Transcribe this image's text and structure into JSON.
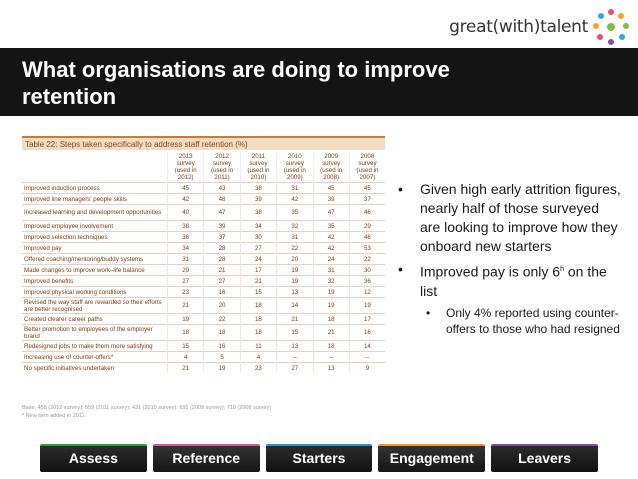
{
  "brand": {
    "name": "great(with)talent"
  },
  "slide": {
    "title": "What organisations are doing to improve retention"
  },
  "table": {
    "caption": "Table 22: Steps taken specifically to address staff retention (%)",
    "headers": [
      [
        "2013",
        "survey",
        "(used in",
        "2012)"
      ],
      [
        "2012",
        "survey",
        "(used in",
        "2011)"
      ],
      [
        "2011",
        "survey",
        "(used in",
        "2010)"
      ],
      [
        "2010",
        "survey",
        "(used in",
        "2009)"
      ],
      [
        "2009",
        "survey",
        "(used in",
        "2008)"
      ],
      [
        "2008",
        "survey",
        "(used in",
        "2007)"
      ]
    ],
    "rows": [
      {
        "label": "Improved induction process",
        "values": [
          "45",
          "43",
          "38",
          "31",
          "45",
          "45"
        ]
      },
      {
        "label": "Improved line managers' people skills",
        "values": [
          "42",
          "46",
          "39",
          "42",
          "39",
          "37"
        ]
      },
      {
        "label": "Increased learning and development opportunities",
        "values": [
          "40",
          "47",
          "38",
          "35",
          "47",
          "46"
        ]
      },
      {
        "label": "Improved employee involvement",
        "values": [
          "38",
          "39",
          "34",
          "32",
          "35",
          "29"
        ]
      },
      {
        "label": "Improved selection techniques",
        "values": [
          "36",
          "37",
          "30",
          "31",
          "42",
          "46"
        ]
      },
      {
        "label": "Improved pay",
        "values": [
          "34",
          "28",
          "27",
          "22",
          "42",
          "53"
        ]
      },
      {
        "label": "Offered coaching/mentoring/buddy systems",
        "values": [
          "31",
          "28",
          "24",
          "20",
          "24",
          "22"
        ]
      },
      {
        "label": "Made changes to improve work–life balance",
        "values": [
          "29",
          "21",
          "17",
          "19",
          "31",
          "30"
        ]
      },
      {
        "label": "Improved benefits",
        "values": [
          "27",
          "27",
          "21",
          "19",
          "32",
          "36"
        ]
      },
      {
        "label": "Improved physical working conditions",
        "values": [
          "23",
          "16",
          "15",
          "13",
          "19",
          "12"
        ]
      },
      {
        "label": "Revised the way staff are rewarded so their efforts are better recognised",
        "values": [
          "21",
          "20",
          "18",
          "14",
          "19",
          "19"
        ]
      },
      {
        "label": "Created clearer career paths",
        "values": [
          "19",
          "22",
          "18",
          "21",
          "18",
          "17"
        ]
      },
      {
        "label": "Better promotion to employees of the employer brand",
        "values": [
          "18",
          "18",
          "18",
          "15",
          "21",
          "16"
        ]
      },
      {
        "label": "Redesigned jobs to make them more satisfying",
        "values": [
          "15",
          "16",
          "11",
          "13",
          "18",
          "14"
        ]
      },
      {
        "label": "Increasing use of counter-offers*",
        "values": [
          "4",
          "5",
          "4",
          "–",
          "–",
          "–"
        ]
      },
      {
        "label": "No specific initiatives undertaken",
        "values": [
          "21",
          "19",
          "23",
          "27",
          "13",
          "9"
        ]
      }
    ],
    "note_base": "Base: 458 (2012 survey); 559 (2011 survey); 431 (2010 survey); 695 (2009 survey); 710 (2008 survey)",
    "note_star": "* New item added in 2011"
  },
  "bullets": {
    "b1": "Given high early attrition figures, nearly half of those surveyed are looking to improve how they onboard new starters",
    "b2_pre": "Improved pay is only 6",
    "b2_sup": "h",
    "b2_post": " on the list",
    "b3": "Only 4% reported using counter-offers to those who had resigned",
    "marker": "•"
  },
  "nav": {
    "tabs": [
      "Assess",
      "Reference",
      "Starters",
      "Engagement",
      "Leavers"
    ]
  }
}
